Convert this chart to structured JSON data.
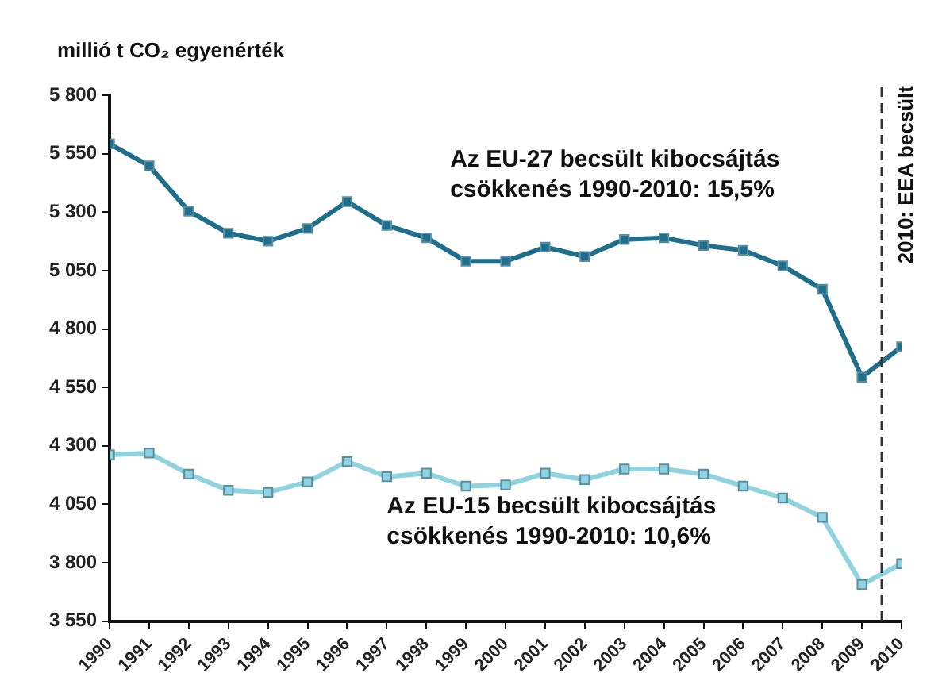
{
  "chart_data": {
    "type": "line",
    "ylabel": "millió t CO₂ egyenérték",
    "x": [
      1990,
      1991,
      1992,
      1993,
      1994,
      1995,
      1996,
      1997,
      1998,
      1999,
      2000,
      2001,
      2002,
      2003,
      2004,
      2005,
      2006,
      2007,
      2008,
      2009,
      2010
    ],
    "xlim": [
      1990,
      2010
    ],
    "xticks": [
      1990,
      1991,
      1992,
      1993,
      1994,
      1995,
      1996,
      1997,
      1998,
      1999,
      2000,
      2001,
      2002,
      2003,
      2004,
      2005,
      2006,
      2007,
      2008,
      2009,
      2010
    ],
    "ylim": [
      3550,
      5800
    ],
    "yticks": [
      {
        "value": 3550,
        "label": "3 550"
      },
      {
        "value": 3800,
        "label": "3 800"
      },
      {
        "value": 4050,
        "label": "4 050"
      },
      {
        "value": 4300,
        "label": "4 300"
      },
      {
        "value": 4550,
        "label": "4 550"
      },
      {
        "value": 4800,
        "label": "4 800"
      },
      {
        "value": 5050,
        "label": "5 050"
      },
      {
        "value": 5300,
        "label": "5 300"
      },
      {
        "value": 5550,
        "label": "5 550"
      },
      {
        "value": 5800,
        "label": "5 800"
      }
    ],
    "series": [
      {
        "color": "#1f6e8c",
        "values": [
          5592,
          5498,
          5304,
          5210,
          5176,
          5230,
          5345,
          5243,
          5190,
          5090,
          5090,
          5150,
          5110,
          5183,
          5190,
          5157,
          5137,
          5070,
          4970,
          4594,
          4724
        ]
      },
      {
        "color": "#8fd3e0",
        "values": [
          4262,
          4269,
          4179,
          4110,
          4101,
          4146,
          4233,
          4168,
          4183,
          4128,
          4133,
          4183,
          4156,
          4201,
          4201,
          4179,
          4128,
          4077,
          3994,
          3707,
          3796
        ]
      }
    ],
    "marker": "square",
    "line_style": "solid",
    "legend": false,
    "ref_lines": [
      {
        "axis": "x",
        "value": 2009.5,
        "label": "2010: EEA becsült",
        "color": "#333333",
        "line_style": "dashed"
      }
    ],
    "annotations": [
      "Az EU-27 becsült kibocsájtás csökkenés 1990-2010: 15,5%",
      "Az EU-15 becsült kibocsájtás csökkenés 1990-2010: 10,6%"
    ]
  }
}
